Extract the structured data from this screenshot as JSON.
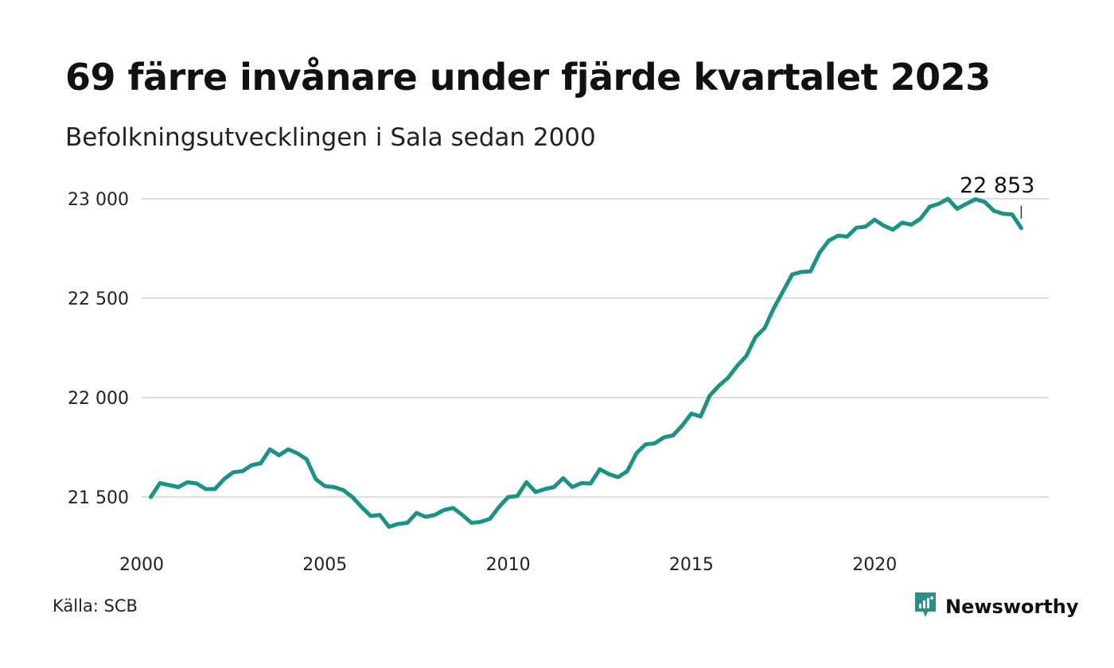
{
  "header": {
    "title": "69 färre invånare under fjärde kvartalet 2023",
    "subtitle": "Befolkningsutvecklingen i Sala sedan 2000"
  },
  "footer": {
    "source": "Källa: SCB",
    "brand": "Newsworthy",
    "brand_icon": "newsworthy-logo-icon"
  },
  "colors": {
    "line": "#1a9384",
    "grid": "#dddddd",
    "brand": "#2a8f84"
  },
  "chart_data": {
    "type": "line",
    "title": "69 färre invånare under fjärde kvartalet 2023",
    "subtitle": "Befolkningsutvecklingen i Sala sedan 2000",
    "xlabel": "",
    "ylabel": "",
    "ylim": [
      21300,
      23100
    ],
    "xlim": [
      2000,
      2024.75
    ],
    "grid": true,
    "y_ticks": [
      21500,
      22000,
      22500,
      23000
    ],
    "y_tick_labels": [
      "21 500",
      "22 000",
      "22 500",
      "23 000"
    ],
    "x_ticks": [
      2000,
      2005,
      2010,
      2015,
      2020
    ],
    "x_tick_labels": [
      "2000",
      "2005",
      "2010",
      "2015",
      "2020"
    ],
    "end_label": "22 853",
    "series": [
      {
        "x_start": 2000.25,
        "x_step": 0.25,
        "values": [
          21500,
          21570,
          21560,
          21550,
          21575,
          21568,
          21540,
          21540,
          21590,
          21625,
          21630,
          21660,
          21670,
          21740,
          21710,
          21740,
          21720,
          21690,
          21590,
          21555,
          21550,
          21535,
          21500,
          21450,
          21405,
          21410,
          21350,
          21365,
          21370,
          21420,
          21400,
          21410,
          21435,
          21445,
          21410,
          21370,
          21375,
          21390,
          21450,
          21500,
          21505,
          21575,
          21525,
          21540,
          21550,
          21595,
          21550,
          21570,
          21568,
          21640,
          21615,
          21600,
          21630,
          21720,
          21765,
          21770,
          21800,
          21810,
          21860,
          21920,
          21905,
          22010,
          22060,
          22100,
          22160,
          22210,
          22305,
          22350,
          22450,
          22535,
          22620,
          22632,
          22635,
          22730,
          22790,
          22815,
          22810,
          22855,
          22860,
          22895,
          22865,
          22845,
          22880,
          22870,
          22900,
          22960,
          22975,
          23000,
          22950,
          22975,
          22998,
          22985,
          22940,
          22925,
          22922,
          22853
        ]
      }
    ]
  }
}
